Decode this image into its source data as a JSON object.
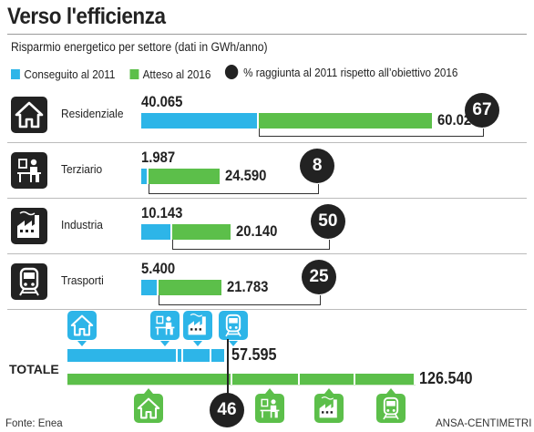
{
  "title": "Verso l'efficienza",
  "subtitle": "Risparmio energetico per settore (dati in GWh/anno)",
  "legend": {
    "achieved": "Conseguito al 2011",
    "expected": "Atteso al 2016",
    "percent": "% raggiunta al 2011 rispetto all’obiettivo 2016"
  },
  "colors": {
    "achieved": "#2db5e8",
    "expected": "#5cbf4a",
    "percent": "#222222"
  },
  "icons": [
    "house-icon",
    "office-worker-icon",
    "factory-icon",
    "train-icon"
  ],
  "chart_data": {
    "type": "bar",
    "categories": [
      "Residenziale",
      "Terziario",
      "Industria",
      "Trasporti"
    ],
    "series": [
      {
        "name": "Conseguito al 2011",
        "values": [
          40065,
          1987,
          10143,
          5400
        ],
        "labels": [
          "40.065",
          "1.987",
          "10.143",
          "5.400"
        ]
      },
      {
        "name": "Atteso al 2016",
        "values": [
          60027,
          24590,
          20140,
          21783
        ],
        "labels": [
          "60.027",
          "24.590",
          "20.140",
          "21.783"
        ]
      }
    ],
    "percent_achieved": [
      67,
      8,
      50,
      25
    ],
    "total": {
      "label": "TOTALE",
      "achieved": 57595,
      "achieved_label": "57.595",
      "expected": 126540,
      "expected_label": "126.540",
      "percent": 46
    }
  },
  "footer": {
    "source": "Fonte: Enea",
    "credit": "ANSA-CENTIMETRI"
  }
}
